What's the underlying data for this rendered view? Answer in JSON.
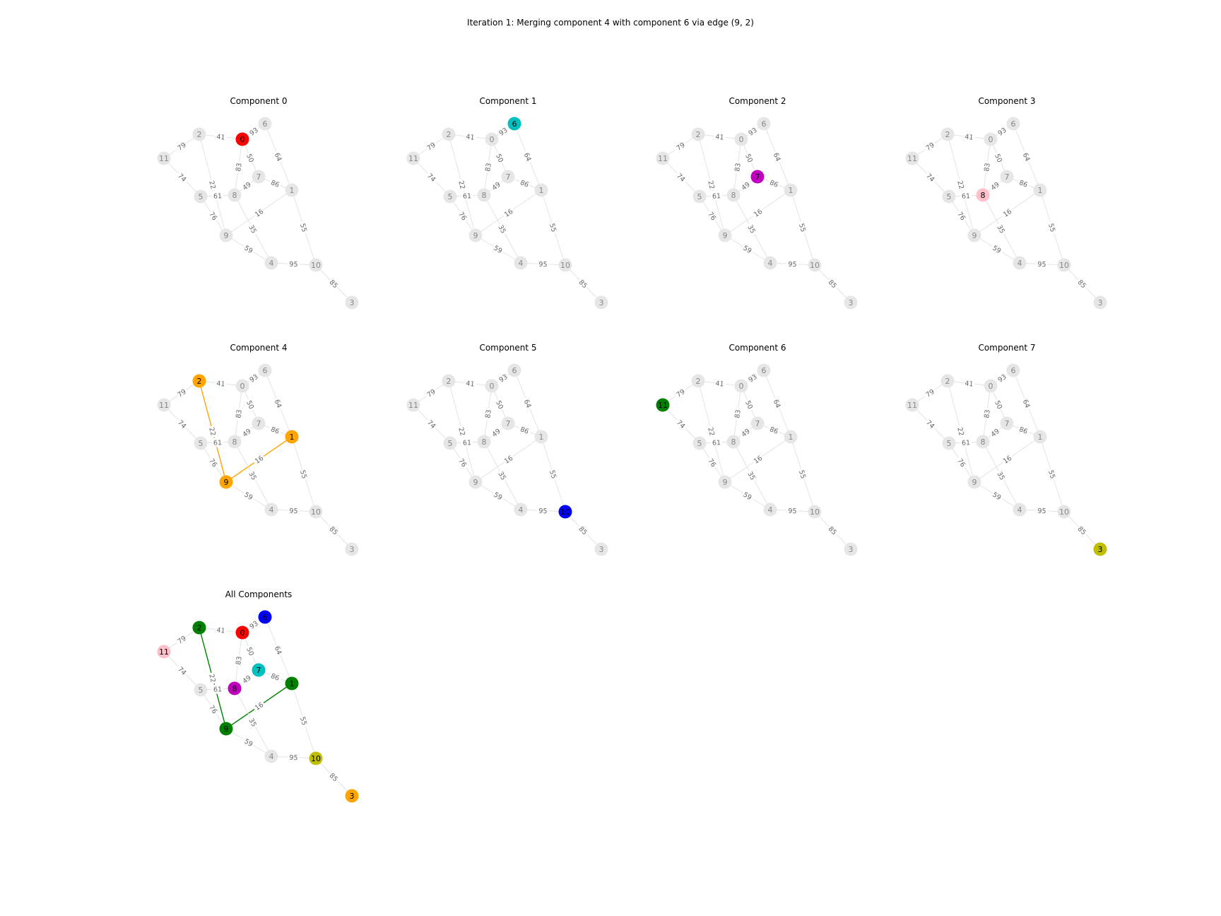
{
  "figure": {
    "title": "Iteration 1: Merging component 4 with component 6 via edge (9, 2)"
  },
  "graph": {
    "nodes": [
      "0",
      "1",
      "2",
      "3",
      "4",
      "5",
      "6",
      "7",
      "8",
      "9",
      "10",
      "11"
    ],
    "edges": [
      {
        "u": "2",
        "v": "0",
        "weight": "41"
      },
      {
        "u": "0",
        "v": "6",
        "weight": "93"
      },
      {
        "u": "11",
        "v": "2",
        "weight": "79"
      },
      {
        "u": "11",
        "v": "5",
        "weight": "74"
      },
      {
        "u": "6",
        "v": "1",
        "weight": "64"
      },
      {
        "u": "0",
        "v": "7",
        "weight": "50"
      },
      {
        "u": "0",
        "v": "8",
        "weight": "83"
      },
      {
        "u": "8",
        "v": "7",
        "weight": "49"
      },
      {
        "u": "7",
        "v": "1",
        "weight": "86"
      },
      {
        "u": "2",
        "v": "9",
        "weight": "22"
      },
      {
        "u": "5",
        "v": "8",
        "weight": "61"
      },
      {
        "u": "5",
        "v": "9",
        "weight": "76"
      },
      {
        "u": "9",
        "v": "1",
        "weight": "16"
      },
      {
        "u": "8",
        "v": "4",
        "weight": "35"
      },
      {
        "u": "9",
        "v": "4",
        "weight": "59"
      },
      {
        "u": "1",
        "v": "10",
        "weight": "55"
      },
      {
        "u": "4",
        "v": "10",
        "weight": "95"
      },
      {
        "u": "10",
        "v": "3",
        "weight": "85"
      }
    ]
  },
  "panels": [
    {
      "title": "Component 0",
      "nodes": [
        {
          "id": "0",
          "color": "#ff0000"
        }
      ],
      "edges": [],
      "edge_color": ""
    },
    {
      "title": "Component 1",
      "nodes": [
        {
          "id": "6",
          "color": "#00bfbf"
        }
      ],
      "edges": [],
      "edge_color": ""
    },
    {
      "title": "Component 2",
      "nodes": [
        {
          "id": "7",
          "color": "#bf00bf"
        }
      ],
      "edges": [],
      "edge_color": ""
    },
    {
      "title": "Component 3",
      "nodes": [
        {
          "id": "8",
          "color": "#ffc0cb"
        }
      ],
      "edges": [],
      "edge_color": ""
    },
    {
      "title": "Component 4",
      "nodes": [
        {
          "id": "2",
          "color": "#ffa500"
        },
        {
          "id": "9",
          "color": "#ffa500"
        },
        {
          "id": "1",
          "color": "#ffa500"
        }
      ],
      "edges": [
        [
          "2",
          "9"
        ],
        [
          "9",
          "1"
        ]
      ],
      "edge_color": "#ffa500"
    },
    {
      "title": "Component 5",
      "nodes": [
        {
          "id": "10",
          "color": "#0000ff"
        }
      ],
      "edges": [],
      "edge_color": ""
    },
    {
      "title": "Component 6",
      "nodes": [
        {
          "id": "11",
          "color": "#008000"
        }
      ],
      "edges": [],
      "edge_color": ""
    },
    {
      "title": "Component 7",
      "nodes": [
        {
          "id": "3",
          "color": "#bfbf00"
        }
      ],
      "edges": [],
      "edge_color": ""
    },
    {
      "title": "All Components",
      "nodes": [
        {
          "id": "0",
          "color": "#ff0000"
        },
        {
          "id": "6",
          "color": "#0000ff"
        },
        {
          "id": "2",
          "color": "#008000"
        },
        {
          "id": "9",
          "color": "#008000"
        },
        {
          "id": "1",
          "color": "#008000"
        },
        {
          "id": "11",
          "color": "#ffc0cb"
        },
        {
          "id": "7",
          "color": "#00bfbf"
        },
        {
          "id": "8",
          "color": "#bf00bf"
        },
        {
          "id": "10",
          "color": "#bfbf00"
        },
        {
          "id": "3",
          "color": "#ffa500"
        }
      ],
      "edges": [
        [
          "2",
          "9"
        ],
        [
          "9",
          "1"
        ]
      ],
      "edge_color": "#008000"
    }
  ],
  "colors": {
    "inactive_node": "#e6e6e6",
    "inactive_text": "#888888",
    "inactive_edge": "#e3e3e3",
    "active_text": "#000000"
  }
}
